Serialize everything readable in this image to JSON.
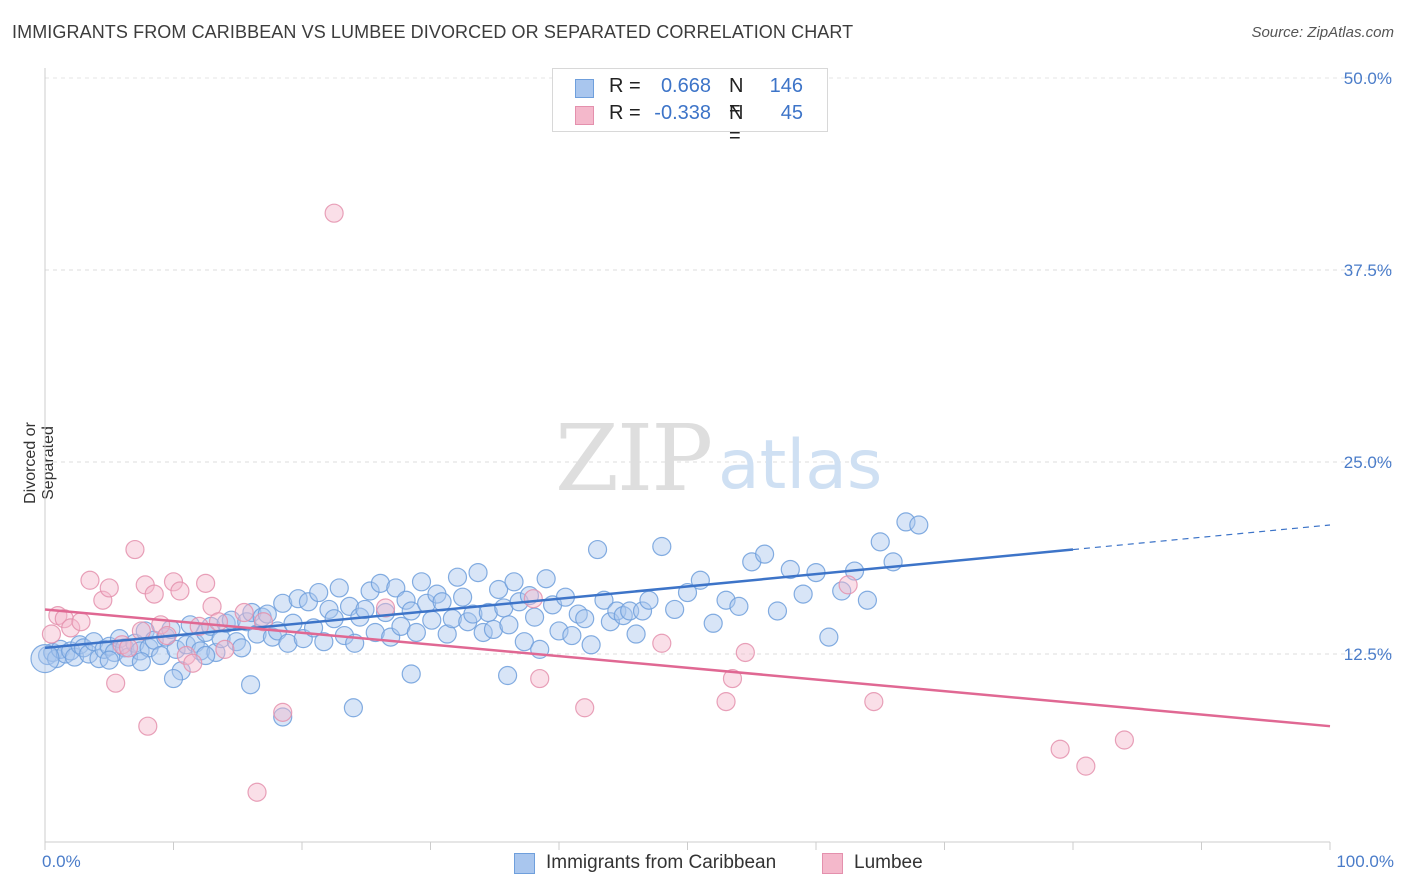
{
  "title": "IMMIGRANTS FROM CARIBBEAN VS LUMBEE DIVORCED OR SEPARATED CORRELATION CHART",
  "source": "Source: ZipAtlas.com",
  "watermark": {
    "zip": "ZIP",
    "atlas": "atlas"
  },
  "colors": {
    "blue": "#3d74c8",
    "blue_fill": "#a9c6ee",
    "pink": "#e06893",
    "pink_fill": "#f4b8cb",
    "tick_label": "#4a7cc9"
  },
  "legend": {
    "rows": [
      {
        "r_label": "R =",
        "r_value": "0.668",
        "n_label": "N =",
        "n_value": "146",
        "color": "#a9c6ee",
        "border": "#6f9fdc"
      },
      {
        "r_label": "R =",
        "r_value": "-0.338",
        "n_label": "N =",
        "n_value": "45",
        "color": "#f4b8cb",
        "border": "#e490ad"
      }
    ]
  },
  "chart_data": {
    "type": "scatter",
    "title": "IMMIGRANTS FROM CARIBBEAN VS LUMBEE DIVORCED OR SEPARATED CORRELATION CHART",
    "xlabel": "",
    "ylabel": "Divorced or Separated",
    "xlim": [
      0,
      100
    ],
    "ylim": [
      0,
      52
    ],
    "x_tick_labels": [
      "0.0%",
      "100.0%"
    ],
    "y_ticks": [
      12.5,
      25.0,
      37.5,
      50.0
    ],
    "y_tick_labels": [
      "12.5%",
      "25.0%",
      "37.5%",
      "50.0%"
    ],
    "grid": "horizontal dashed",
    "legend_position": "top-center",
    "series": [
      {
        "name": "Immigrants from Caribbean",
        "color": "#3d74c8",
        "trend": {
          "x": [
            0,
            80
          ],
          "y": [
            12.9,
            19.3
          ],
          "dashed_to": [
            100,
            20.9
          ]
        },
        "points": [
          [
            0.2,
            12.4
          ],
          [
            0.6,
            12.6
          ],
          [
            0.9,
            12.2
          ],
          [
            1.2,
            12.8
          ],
          [
            1.6,
            12.5
          ],
          [
            2.0,
            12.7
          ],
          [
            2.3,
            12.3
          ],
          [
            2.7,
            13.1
          ],
          [
            3.0,
            12.9
          ],
          [
            3.4,
            12.5
          ],
          [
            3.8,
            13.3
          ],
          [
            4.2,
            12.2
          ],
          [
            4.6,
            12.8
          ],
          [
            5.0,
            13.0
          ],
          [
            5.4,
            12.6
          ],
          [
            5.8,
            13.5
          ],
          [
            6.2,
            12.9
          ],
          [
            6.5,
            12.3
          ],
          [
            7.0,
            13.2
          ],
          [
            7.4,
            12.7
          ],
          [
            7.8,
            14.0
          ],
          [
            8.1,
            12.9
          ],
          [
            8.5,
            13.4
          ],
          [
            9.0,
            12.4
          ],
          [
            9.4,
            13.6
          ],
          [
            9.8,
            14.1
          ],
          [
            10.2,
            12.8
          ],
          [
            10.6,
            11.4
          ],
          [
            11.0,
            13.1
          ],
          [
            11.3,
            14.4
          ],
          [
            11.7,
            13.2
          ],
          [
            12.1,
            12.7
          ],
          [
            12.5,
            13.9
          ],
          [
            12.9,
            14.3
          ],
          [
            13.3,
            12.6
          ],
          [
            13.7,
            13.5
          ],
          [
            14.1,
            14.5
          ],
          [
            14.5,
            14.7
          ],
          [
            14.9,
            13.3
          ],
          [
            15.3,
            12.9
          ],
          [
            15.7,
            14.6
          ],
          [
            16.1,
            15.2
          ],
          [
            16.5,
            13.8
          ],
          [
            16.9,
            14.9
          ],
          [
            17.3,
            15.1
          ],
          [
            17.7,
            13.6
          ],
          [
            18.1,
            14.0
          ],
          [
            18.5,
            15.8
          ],
          [
            18.9,
            13.2
          ],
          [
            19.3,
            14.5
          ],
          [
            19.7,
            16.1
          ],
          [
            20.1,
            13.5
          ],
          [
            20.5,
            15.9
          ],
          [
            20.9,
            14.2
          ],
          [
            21.3,
            16.5
          ],
          [
            21.7,
            13.3
          ],
          [
            22.1,
            15.4
          ],
          [
            22.5,
            14.8
          ],
          [
            22.9,
            16.8
          ],
          [
            23.3,
            13.7
          ],
          [
            23.7,
            15.6
          ],
          [
            24.1,
            13.2
          ],
          [
            24.5,
            14.9
          ],
          [
            24.9,
            15.4
          ],
          [
            25.3,
            16.6
          ],
          [
            25.7,
            13.9
          ],
          [
            26.1,
            17.1
          ],
          [
            26.5,
            15.2
          ],
          [
            26.9,
            13.6
          ],
          [
            27.3,
            16.8
          ],
          [
            27.7,
            14.3
          ],
          [
            28.1,
            16.0
          ],
          [
            28.5,
            15.3
          ],
          [
            28.9,
            13.9
          ],
          [
            29.3,
            17.2
          ],
          [
            29.7,
            15.8
          ],
          [
            30.1,
            14.7
          ],
          [
            30.5,
            16.4
          ],
          [
            30.9,
            15.9
          ],
          [
            31.3,
            13.8
          ],
          [
            31.7,
            14.8
          ],
          [
            32.1,
            17.5
          ],
          [
            32.5,
            16.2
          ],
          [
            32.9,
            14.6
          ],
          [
            33.3,
            15.1
          ],
          [
            33.7,
            17.8
          ],
          [
            34.1,
            13.9
          ],
          [
            34.5,
            15.2
          ],
          [
            34.9,
            14.1
          ],
          [
            35.3,
            16.7
          ],
          [
            35.7,
            15.5
          ],
          [
            36.1,
            14.4
          ],
          [
            36.5,
            17.2
          ],
          [
            36.9,
            15.9
          ],
          [
            37.3,
            13.3
          ],
          [
            37.7,
            16.3
          ],
          [
            38.1,
            14.9
          ],
          [
            38.5,
            12.8
          ],
          [
            39.0,
            17.4
          ],
          [
            39.5,
            15.7
          ],
          [
            40.0,
            14.0
          ],
          [
            40.5,
            16.2
          ],
          [
            41.0,
            13.7
          ],
          [
            41.5,
            15.1
          ],
          [
            42.0,
            14.8
          ],
          [
            42.5,
            13.1
          ],
          [
            43.0,
            19.3
          ],
          [
            43.5,
            16.0
          ],
          [
            44.0,
            14.6
          ],
          [
            44.5,
            15.3
          ],
          [
            45.0,
            15.0
          ],
          [
            45.5,
            15.3
          ],
          [
            46.0,
            13.8
          ],
          [
            46.5,
            15.3
          ],
          [
            47.0,
            16.0
          ],
          [
            48.0,
            19.5
          ],
          [
            49.0,
            15.4
          ],
          [
            50.0,
            16.5
          ],
          [
            51.0,
            17.3
          ],
          [
            52.0,
            14.5
          ],
          [
            53.0,
            16.0
          ],
          [
            54.0,
            15.6
          ],
          [
            55.0,
            18.5
          ],
          [
            56.0,
            19.0
          ],
          [
            57.0,
            15.3
          ],
          [
            58.0,
            18.0
          ],
          [
            59.0,
            16.4
          ],
          [
            60.0,
            17.8
          ],
          [
            61.0,
            13.6
          ],
          [
            62.0,
            16.6
          ],
          [
            63.0,
            17.9
          ],
          [
            64.0,
            16.0
          ],
          [
            65.0,
            19.8
          ],
          [
            66.0,
            18.5
          ],
          [
            67.0,
            21.1
          ],
          [
            68.0,
            20.9
          ],
          [
            18.5,
            8.4
          ],
          [
            24.0,
            9.0
          ],
          [
            28.5,
            11.2
          ],
          [
            36.0,
            11.1
          ],
          [
            16.0,
            10.5
          ],
          [
            10.0,
            10.9
          ],
          [
            5.0,
            12.1
          ],
          [
            12.5,
            12.4
          ],
          [
            0.0,
            12.2
          ],
          [
            7.5,
            12.0
          ]
        ]
      },
      {
        "name": "Lumbee",
        "color": "#e06893",
        "trend": {
          "x": [
            0,
            100
          ],
          "y": [
            15.4,
            7.8
          ]
        },
        "points": [
          [
            0.5,
            13.8
          ],
          [
            1.0,
            15.0
          ],
          [
            1.5,
            14.8
          ],
          [
            2.0,
            14.2
          ],
          [
            2.8,
            14.6
          ],
          [
            3.5,
            17.3
          ],
          [
            4.5,
            16.0
          ],
          [
            5.0,
            16.8
          ],
          [
            5.5,
            10.6
          ],
          [
            6.0,
            13.1
          ],
          [
            6.5,
            12.9
          ],
          [
            7.0,
            19.3
          ],
          [
            7.5,
            14.0
          ],
          [
            7.8,
            17.0
          ],
          [
            8.0,
            7.8
          ],
          [
            8.5,
            16.4
          ],
          [
            9.0,
            14.4
          ],
          [
            9.5,
            13.7
          ],
          [
            10.0,
            17.2
          ],
          [
            10.5,
            16.6
          ],
          [
            11.0,
            12.4
          ],
          [
            11.5,
            11.9
          ],
          [
            12.0,
            14.3
          ],
          [
            12.5,
            17.1
          ],
          [
            13.0,
            15.6
          ],
          [
            13.5,
            14.6
          ],
          [
            14.0,
            12.8
          ],
          [
            15.5,
            15.2
          ],
          [
            16.5,
            3.5
          ],
          [
            17.0,
            14.6
          ],
          [
            18.5,
            8.7
          ],
          [
            22.5,
            41.2
          ],
          [
            26.5,
            15.5
          ],
          [
            38.0,
            16.1
          ],
          [
            38.5,
            10.9
          ],
          [
            42.0,
            9.0
          ],
          [
            48.0,
            13.2
          ],
          [
            53.0,
            9.4
          ],
          [
            54.5,
            12.6
          ],
          [
            53.5,
            10.9
          ],
          [
            62.5,
            17.0
          ],
          [
            64.5,
            9.4
          ],
          [
            79.0,
            6.3
          ],
          [
            81.0,
            5.2
          ],
          [
            84.0,
            6.9
          ]
        ]
      }
    ]
  },
  "bottom_legend": [
    "Immigrants from Caribbean",
    "Lumbee"
  ]
}
